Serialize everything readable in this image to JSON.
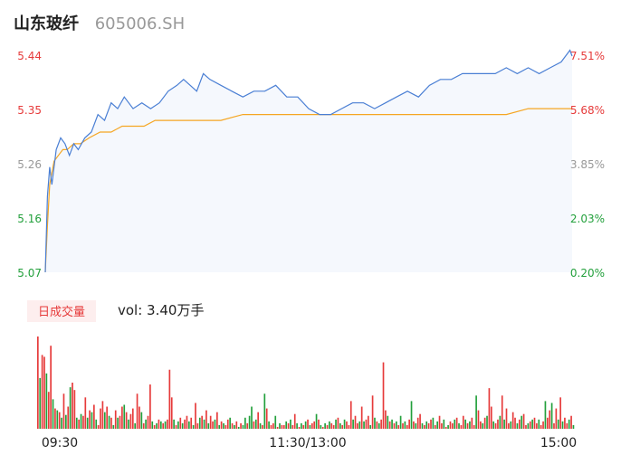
{
  "header": {
    "stock_name": "山东玻纤",
    "stock_code": "605006.SH"
  },
  "volume_panel": {
    "badge_label": "日成交量",
    "volume_text": "vol: 3.40万手"
  },
  "colors": {
    "price_line": "#4a7fd4",
    "price_fill": "#f5f8fd",
    "avg_line": "#f5a623",
    "up": "#e63a3a",
    "down": "#23a03c",
    "label_gray": "#999999"
  },
  "chart_data": [
    {
      "type": "line",
      "title": "",
      "y_ticks": [
        "5.44",
        "5.35",
        "5.26",
        "5.16",
        "5.07"
      ],
      "y_pct_ticks": [
        "7.51%",
        "5.68%",
        "3.85%",
        "2.03%",
        "0.20%"
      ],
      "y_tick_colors": [
        "#e63a3a",
        "#e63a3a",
        "#999999",
        "#23a03c",
        "#23a03c"
      ],
      "ylim": [
        5.07,
        5.44
      ],
      "series": [
        {
          "key": "price",
          "x": [
            0,
            1,
            2,
            3,
            5,
            7,
            9,
            11,
            13,
            15,
            18,
            21,
            24,
            27,
            30,
            33,
            36,
            40,
            44,
            48,
            52,
            56,
            60,
            63,
            66,
            69,
            72,
            75,
            80,
            85,
            90,
            95,
            100,
            105,
            110,
            115,
            120,
            125,
            130,
            135,
            140,
            145,
            150,
            155,
            160,
            165,
            170,
            175,
            180,
            185,
            190,
            195,
            200,
            205,
            210,
            215,
            220,
            225,
            230,
            235,
            239,
            240
          ],
          "values": [
            5.07,
            5.2,
            5.25,
            5.22,
            5.28,
            5.3,
            5.29,
            5.27,
            5.29,
            5.28,
            5.3,
            5.31,
            5.34,
            5.33,
            5.36,
            5.35,
            5.37,
            5.35,
            5.36,
            5.35,
            5.36,
            5.38,
            5.39,
            5.4,
            5.39,
            5.38,
            5.41,
            5.4,
            5.39,
            5.38,
            5.37,
            5.38,
            5.38,
            5.39,
            5.37,
            5.37,
            5.35,
            5.34,
            5.34,
            5.35,
            5.36,
            5.36,
            5.35,
            5.36,
            5.37,
            5.38,
            5.37,
            5.39,
            5.4,
            5.4,
            5.41,
            5.41,
            5.41,
            5.41,
            5.42,
            5.41,
            5.42,
            5.41,
            5.42,
            5.43,
            5.45,
            5.44
          ]
        },
        {
          "key": "average",
          "x": [
            0,
            1,
            2,
            3,
            4,
            6,
            8,
            10,
            13,
            16,
            20,
            25,
            30,
            35,
            40,
            45,
            50,
            55,
            60,
            65,
            70,
            75,
            80,
            90,
            100,
            110,
            120,
            130,
            140,
            150,
            160,
            170,
            180,
            190,
            200,
            210,
            220,
            230,
            240
          ],
          "values": [
            5.07,
            5.15,
            5.22,
            5.24,
            5.26,
            5.27,
            5.28,
            5.28,
            5.29,
            5.29,
            5.3,
            5.31,
            5.31,
            5.32,
            5.32,
            5.32,
            5.33,
            5.33,
            5.33,
            5.33,
            5.33,
            5.33,
            5.33,
            5.34,
            5.34,
            5.34,
            5.34,
            5.34,
            5.34,
            5.34,
            5.34,
            5.34,
            5.34,
            5.34,
            5.34,
            5.34,
            5.35,
            5.35,
            5.35
          ]
        }
      ]
    },
    {
      "type": "bar",
      "title": "",
      "x_ticks": [
        "09:30",
        "11:30/13:00",
        "15:00"
      ],
      "ylim": [
        0,
        100
      ],
      "values": [
        100,
        55,
        80,
        78,
        60,
        40,
        90,
        32,
        22,
        20,
        18,
        12,
        38,
        15,
        24,
        45,
        50,
        42,
        12,
        10,
        16,
        14,
        34,
        12,
        20,
        18,
        26,
        10,
        4,
        22,
        30,
        18,
        24,
        14,
        12,
        4,
        20,
        12,
        14,
        24,
        26,
        18,
        10,
        16,
        22,
        6,
        38,
        24,
        18,
        6,
        10,
        14,
        48,
        8,
        4,
        6,
        10,
        8,
        6,
        8,
        10,
        64,
        34,
        10,
        4,
        8,
        12,
        6,
        10,
        14,
        8,
        12,
        4,
        28,
        6,
        12,
        14,
        10,
        20,
        6,
        14,
        8,
        10,
        18,
        4,
        8,
        6,
        4,
        10,
        12,
        6,
        4,
        8,
        2,
        6,
        4,
        12,
        6,
        14,
        24,
        8,
        10,
        18,
        6,
        4,
        38,
        22,
        8,
        4,
        6,
        14,
        2,
        6,
        4,
        4,
        8,
        6,
        10,
        4,
        16,
        6,
        2,
        6,
        4,
        8,
        10,
        4,
        6,
        8,
        16,
        10,
        4,
        2,
        6,
        4,
        8,
        6,
        4,
        10,
        12,
        6,
        4,
        10,
        8,
        4,
        30,
        10,
        14,
        6,
        8,
        24,
        8,
        10,
        14,
        4,
        36,
        12,
        8,
        6,
        10,
        72,
        20,
        14,
        8,
        10,
        6,
        8,
        4,
        14,
        6,
        8,
        4,
        10,
        30,
        8,
        6,
        12,
        16,
        6,
        4,
        8,
        6,
        10,
        12,
        4,
        8,
        14,
        6,
        10,
        2,
        4,
        8,
        6,
        10,
        12,
        6,
        4,
        14,
        10,
        6,
        8,
        12,
        4,
        36,
        20,
        8,
        6,
        12,
        14,
        44,
        24,
        8,
        6,
        10,
        14,
        36,
        10,
        22,
        6,
        8,
        18,
        12,
        6,
        10,
        14,
        16,
        4,
        6,
        8,
        10,
        12,
        6,
        10,
        4,
        8,
        30,
        12,
        20,
        28,
        6,
        22,
        10,
        34,
        8,
        12,
        6,
        10,
        14,
        4
      ],
      "colors": [
        "u",
        "d",
        "u",
        "u",
        "d",
        "u",
        "u",
        "d",
        "u",
        "d",
        "u",
        "d",
        "u",
        "d",
        "u",
        "d",
        "u",
        "u",
        "d",
        "u",
        "d",
        "u",
        "u",
        "d",
        "u",
        "d",
        "u",
        "d",
        "u",
        "u",
        "u",
        "d",
        "u",
        "d",
        "u",
        "d",
        "u",
        "d",
        "u",
        "u",
        "d",
        "u",
        "d",
        "u",
        "u",
        "d",
        "u",
        "u",
        "d",
        "u",
        "d",
        "u",
        "u",
        "d",
        "u",
        "d",
        "u",
        "d",
        "u",
        "d",
        "u",
        "u",
        "u",
        "d",
        "u",
        "d",
        "u",
        "d",
        "u",
        "u",
        "d",
        "u",
        "d",
        "u",
        "u",
        "d",
        "u",
        "d",
        "u",
        "d",
        "u",
        "u",
        "d",
        "u",
        "d",
        "u",
        "d",
        "u",
        "u",
        "d",
        "u",
        "d",
        "u",
        "d",
        "u",
        "d",
        "d",
        "u",
        "d",
        "d",
        "u",
        "d",
        "u",
        "d",
        "u",
        "d",
        "u",
        "d",
        "u",
        "u",
        "d",
        "u",
        "d",
        "u",
        "u",
        "d",
        "u",
        "d",
        "u",
        "u",
        "d",
        "u",
        "d",
        "u",
        "d",
        "u",
        "d",
        "u",
        "u",
        "d",
        "u",
        "d",
        "u",
        "d",
        "u",
        "d",
        "u",
        "u",
        "d",
        "u",
        "d",
        "u",
        "d",
        "u",
        "u",
        "u",
        "d",
        "u",
        "u",
        "d",
        "u",
        "d",
        "u",
        "u",
        "d",
        "u",
        "d",
        "u",
        "d",
        "u",
        "u",
        "u",
        "d",
        "u",
        "d",
        "u",
        "d",
        "u",
        "d",
        "u",
        "d",
        "u",
        "u",
        "d",
        "u",
        "d",
        "u",
        "u",
        "d",
        "u",
        "d",
        "u",
        "u",
        "d",
        "u",
        "d",
        "u",
        "u",
        "d",
        "u",
        "d",
        "u",
        "u",
        "d",
        "u",
        "d",
        "u",
        "u",
        "d",
        "u",
        "d",
        "u",
        "u",
        "d",
        "u",
        "u",
        "d",
        "u",
        "d",
        "u",
        "u",
        "d",
        "u",
        "u",
        "d",
        "u",
        "d",
        "u",
        "u",
        "d",
        "u",
        "u",
        "d",
        "u",
        "d",
        "u",
        "u",
        "d",
        "u",
        "d",
        "u",
        "u",
        "d",
        "u",
        "u",
        "d",
        "u",
        "u",
        "d",
        "u",
        "u",
        "d",
        "u",
        "d",
        "u",
        "u",
        "d",
        "u",
        "d",
        "u",
        "u",
        "d"
      ]
    }
  ]
}
